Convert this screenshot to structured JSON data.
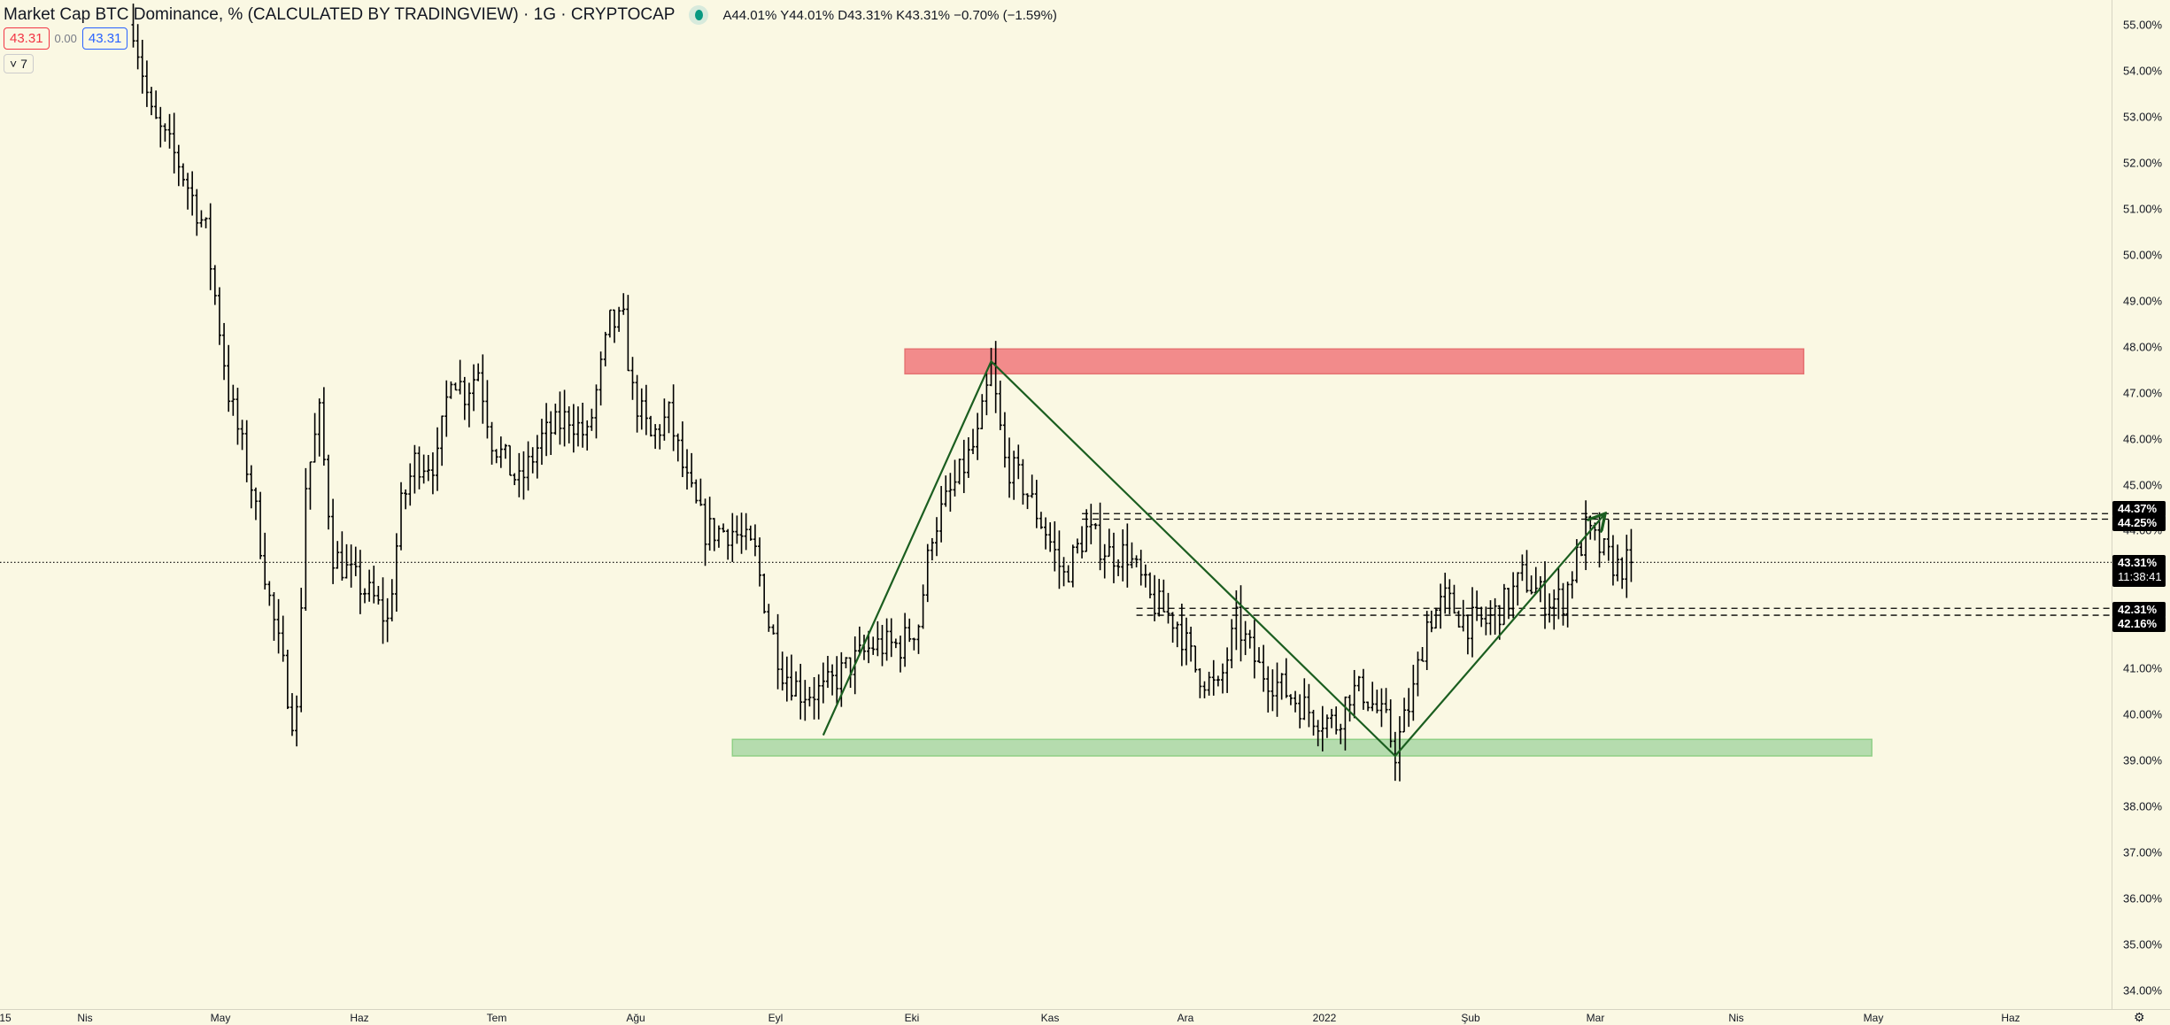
{
  "header": {
    "title": "Market Cap BTC Dominance, % (CALCULATED BY TRADINGVIEW) · 1G · CRYPTOCAP",
    "ohlc": "A44.01% Y44.01% D43.31% K43.31% −0.70% (−1.59%)",
    "sell_price": "43.31",
    "spread": "0.00",
    "buy_price": "43.31",
    "indicators_toggle": "˅ 7"
  },
  "price_axis": {
    "ticks": [
      "55.00%",
      "54.00%",
      "53.00%",
      "52.00%",
      "51.00%",
      "50.00%",
      "49.00%",
      "48.00%",
      "47.00%",
      "46.00%",
      "45.00%",
      "44.00%",
      "43.00%",
      "42.00%",
      "41.00%",
      "40.00%",
      "39.00%",
      "38.00%",
      "37.00%",
      "36.00%",
      "35.00%",
      "34.00%"
    ],
    "labels": {
      "l1": "44.37%",
      "l2": "44.25%",
      "cur": "43.31%",
      "countdown": "11:38:41",
      "l3": "42.31%",
      "l4": "42.16%"
    }
  },
  "time_axis": {
    "ticks": [
      "15",
      "Nis",
      "May",
      "Haz",
      "Tem",
      "Ağu",
      "Eyl",
      "Eki",
      "Kas",
      "Ara",
      "2022",
      "Şub",
      "Mar",
      "Nis",
      "May",
      "Haz"
    ]
  },
  "colors": {
    "bars": "#000000",
    "resistance": "#f28b8b",
    "support": "#b5dcae",
    "trend": "#1b5e20"
  },
  "chart_data": {
    "type": "ohlc",
    "unit": "%",
    "x_unit": "days since 2021-04-01",
    "ylim": [
      33.6,
      55.3
    ],
    "anchors": [
      [
        12,
        55
      ],
      [
        16,
        53
      ],
      [
        22,
        52
      ],
      [
        28,
        50.5
      ],
      [
        33,
        47
      ],
      [
        38,
        45
      ],
      [
        42,
        42.5
      ],
      [
        47,
        40
      ],
      [
        48,
        40
      ],
      [
        50,
        45
      ],
      [
        53,
        46.5
      ],
      [
        56,
        43.5
      ],
      [
        60,
        43
      ],
      [
        65,
        42.5
      ],
      [
        68,
        42
      ],
      [
        71,
        44.5
      ],
      [
        74,
        45.5
      ],
      [
        79,
        45.5
      ],
      [
        82,
        47.5
      ],
      [
        85,
        47
      ],
      [
        88,
        47.5
      ],
      [
        91,
        46
      ],
      [
        97,
        45
      ],
      [
        102,
        46
      ],
      [
        108,
        46.5
      ],
      [
        112,
        46
      ],
      [
        117,
        48.5
      ],
      [
        120,
        48.5
      ],
      [
        122,
        47
      ],
      [
        126,
        46
      ],
      [
        130,
        46.5
      ],
      [
        134,
        45
      ],
      [
        138,
        44
      ],
      [
        144,
        44
      ],
      [
        149,
        43.5
      ],
      [
        152,
        42
      ],
      [
        155,
        41
      ],
      [
        159,
        40.5
      ],
      [
        164,
        40.5
      ],
      [
        169,
        41
      ],
      [
        175,
        41.5
      ],
      [
        181,
        41.5
      ],
      [
        185,
        42
      ],
      [
        188,
        44
      ],
      [
        193,
        45
      ],
      [
        198,
        46
      ],
      [
        201,
        47.5
      ],
      [
        204,
        45.5
      ],
      [
        208,
        45
      ],
      [
        213,
        44
      ],
      [
        217,
        43
      ],
      [
        222,
        44
      ],
      [
        227,
        43.5
      ],
      [
        231,
        43.5
      ],
      [
        236,
        42.5
      ],
      [
        242,
        42
      ],
      [
        246,
        41
      ],
      [
        251,
        40.5
      ],
      [
        255,
        42
      ],
      [
        260,
        41
      ],
      [
        266,
        40.5
      ],
      [
        272,
        40
      ],
      [
        277,
        39.8
      ],
      [
        280,
        40.5
      ],
      [
        283,
        40.5
      ],
      [
        288,
        39.8
      ],
      [
        290,
        39.2
      ],
      [
        294,
        40.5
      ],
      [
        297,
        42
      ],
      [
        301,
        42.5
      ],
      [
        306,
        42
      ],
      [
        310,
        42
      ],
      [
        315,
        42.5
      ],
      [
        318,
        43
      ],
      [
        323,
        42.5
      ],
      [
        327,
        42.5
      ],
      [
        332,
        44
      ],
      [
        336,
        43.5
      ],
      [
        339,
        43.2
      ],
      [
        342,
        43.31
      ]
    ],
    "zones": [
      {
        "name": "resistance",
        "from": 182,
        "to": 380,
        "low": 47.41,
        "high": 47.95
      },
      {
        "name": "support",
        "from": 144,
        "to": 395,
        "low": 39.1,
        "high": 39.46
      }
    ],
    "trend_path": [
      [
        164,
        39.55
      ],
      [
        201,
        47.68
      ],
      [
        290,
        39.1
      ],
      [
        336,
        44.34
      ]
    ],
    "levels": [
      {
        "price": 44.37,
        "from": 221
      },
      {
        "price": 44.25,
        "from": 221
      },
      {
        "price": 42.31,
        "from": 233
      },
      {
        "price": 42.16,
        "from": 233
      }
    ],
    "current_price": 43.31
  }
}
